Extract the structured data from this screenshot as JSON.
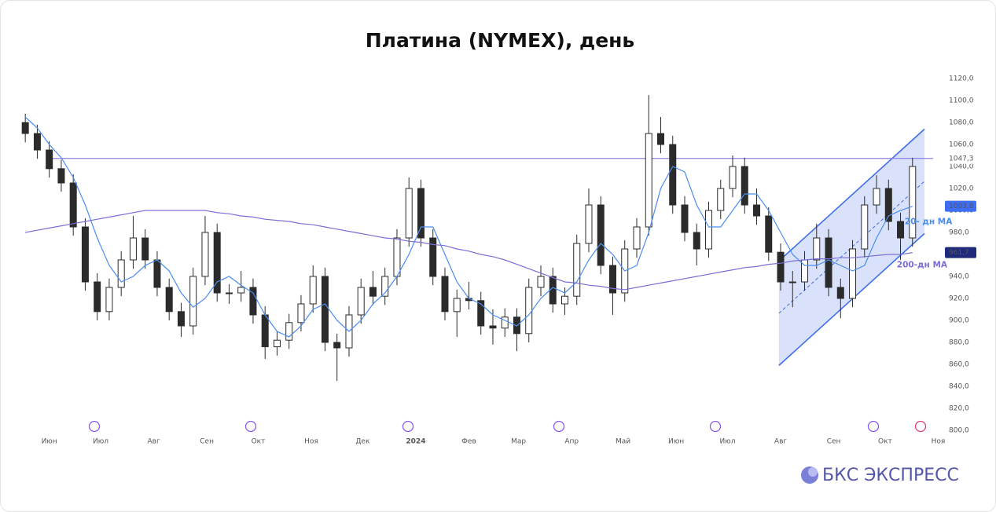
{
  "chart_data": {
    "type": "candlestick",
    "title": "Платина (NYMEX), день",
    "color": "#2b2b2b",
    "x": [
      -14,
      -7,
      0,
      7,
      14,
      21,
      28,
      35,
      42,
      49,
      56,
      63,
      70,
      77,
      84,
      91,
      98,
      105,
      112,
      119,
      126,
      133,
      140,
      147,
      154,
      161,
      168,
      175,
      182,
      189,
      196,
      203,
      210,
      217,
      224,
      231,
      238,
      245,
      252,
      259,
      266,
      273,
      280,
      287,
      294,
      301,
      308,
      315,
      322,
      329,
      336,
      343,
      350,
      357,
      364,
      371,
      378,
      385,
      392,
      399,
      406,
      413,
      420,
      427,
      434,
      441,
      448,
      455,
      462,
      469,
      476,
      483,
      490,
      497,
      504
    ],
    "open": [
      1080,
      1070,
      1055,
      1038,
      1025,
      985,
      935,
      908,
      930,
      955,
      975,
      955,
      930,
      908,
      895,
      940,
      980,
      925,
      925,
      930,
      905,
      876,
      882,
      898,
      915,
      940,
      880,
      875,
      905,
      930,
      922,
      940,
      975,
      1020,
      975,
      940,
      908,
      920,
      918,
      895,
      893,
      903,
      888,
      930,
      940,
      915,
      922,
      970,
      1005,
      950,
      925,
      965,
      985,
      1070,
      1060,
      1005,
      980,
      965,
      1000,
      1020,
      1040,
      1005,
      995,
      962,
      935,
      935,
      955,
      975,
      930,
      920,
      965,
      1005,
      1020,
      990,
      975
    ],
    "high": [
      1088,
      1078,
      1063,
      1046,
      1033,
      993,
      943,
      938,
      963,
      995,
      983,
      963,
      938,
      916,
      948,
      995,
      988,
      933,
      945,
      938,
      913,
      890,
      906,
      923,
      950,
      948,
      888,
      913,
      938,
      945,
      948,
      983,
      1030,
      1028,
      983,
      948,
      928,
      935,
      926,
      910,
      911,
      911,
      938,
      950,
      948,
      930,
      978,
      1020,
      1013,
      958,
      973,
      993,
      1105,
      1085,
      1068,
      1013,
      988,
      1008,
      1028,
      1050,
      1048,
      1020,
      1003,
      970,
      945,
      963,
      988,
      983,
      938,
      973,
      1013,
      1032,
      1028,
      998,
      1048
    ],
    "low": [
      1062,
      1047,
      1030,
      1017,
      977,
      927,
      900,
      900,
      922,
      947,
      947,
      922,
      900,
      885,
      887,
      932,
      917,
      915,
      917,
      897,
      865,
      868,
      874,
      890,
      907,
      872,
      845,
      867,
      897,
      914,
      914,
      932,
      967,
      967,
      932,
      900,
      885,
      910,
      887,
      878,
      885,
      872,
      880,
      922,
      907,
      905,
      914,
      962,
      942,
      905,
      917,
      957,
      977,
      1052,
      997,
      972,
      950,
      957,
      992,
      1012,
      997,
      987,
      954,
      927,
      912,
      927,
      947,
      922,
      902,
      912,
      957,
      997,
      982,
      955,
      967
    ],
    "close": [
      1070,
      1055,
      1038,
      1025,
      985,
      935,
      908,
      930,
      955,
      975,
      955,
      930,
      908,
      895,
      940,
      980,
      925,
      925,
      930,
      905,
      876,
      882,
      898,
      915,
      940,
      880,
      875,
      905,
      930,
      922,
      940,
      975,
      1020,
      975,
      940,
      908,
      920,
      918,
      895,
      893,
      903,
      888,
      930,
      940,
      915,
      922,
      970,
      1005,
      950,
      925,
      965,
      985,
      1070,
      1060,
      1005,
      980,
      965,
      1000,
      1020,
      1040,
      1005,
      995,
      962,
      935,
      935,
      955,
      975,
      930,
      920,
      965,
      1005,
      1020,
      990,
      975,
      1040
    ],
    "series": [
      {
        "name": "20- дн MA",
        "color": "#4a8df0",
        "values": [
          1085,
          1075,
          1060,
          1048,
          1030,
          1005,
          975,
          950,
          935,
          940,
          950,
          955,
          945,
          925,
          912,
          920,
          935,
          940,
          932,
          925,
          905,
          890,
          885,
          895,
          910,
          915,
          900,
          890,
          900,
          915,
          925,
          940,
          960,
          985,
          985,
          960,
          935,
          920,
          915,
          905,
          900,
          895,
          905,
          920,
          930,
          925,
          935,
          955,
          970,
          960,
          945,
          950,
          980,
          1020,
          1040,
          1035,
          1005,
          985,
          985,
          1000,
          1015,
          1015,
          1000,
          980,
          960,
          950,
          950,
          955,
          950,
          945,
          950,
          975,
          995,
          1000,
          1003.8
        ],
        "end_label": {
          "value": 1003.8,
          "label": "1003,8"
        }
      },
      {
        "name": "200-дн MA",
        "color": "#7b6fd6",
        "values": [
          980,
          982,
          984,
          986,
          988,
          990,
          992,
          994,
          996,
          998,
          1000,
          1000,
          1000,
          1000,
          1000,
          1000,
          998,
          997,
          995,
          994,
          992,
          991,
          990,
          988,
          987,
          985,
          983,
          981,
          979,
          977,
          975,
          974,
          972,
          971,
          969,
          968,
          965,
          963,
          960,
          958,
          955,
          951,
          947,
          943,
          939,
          935,
          934,
          932,
          931,
          929,
          928,
          930,
          932,
          934,
          936,
          938,
          940,
          942,
          944,
          946,
          948,
          949,
          951,
          952,
          954,
          955,
          956,
          956,
          957,
          957,
          958,
          959,
          960,
          960,
          961.7
        ],
        "end_label": {
          "value": 961.7,
          "label": "961,7"
        }
      }
    ],
    "level": {
      "value": 1047.3,
      "label": "1047,3",
      "color": "#8e80e6",
      "x": [
        1,
        516
      ]
    },
    "channel": {
      "x": [
        426,
        511
      ],
      "upper": [
        954,
        1074
      ],
      "lower": [
        859,
        979
      ],
      "color": "#3f6ee8"
    },
    "xlim": [
      -15,
      522
    ],
    "xticks": [
      {
        "value": 0,
        "label": "Июн"
      },
      {
        "value": 30,
        "label": "Июл"
      },
      {
        "value": 61,
        "label": "Авг"
      },
      {
        "value": 92,
        "label": "Сен"
      },
      {
        "value": 122,
        "label": "Окт"
      },
      {
        "value": 153,
        "label": "Ноя"
      },
      {
        "value": 183,
        "label": "Дек"
      },
      {
        "value": 214,
        "label": "2024"
      },
      {
        "value": 245,
        "label": "Фев"
      },
      {
        "value": 274,
        "label": "Мар"
      },
      {
        "value": 305,
        "label": "Апр"
      },
      {
        "value": 335,
        "label": "Май"
      },
      {
        "value": 366,
        "label": "Июн"
      },
      {
        "value": 396,
        "label": "Июл"
      },
      {
        "value": 427,
        "label": "Авг"
      },
      {
        "value": 458,
        "label": "Сен"
      },
      {
        "value": 488,
        "label": "Окт"
      },
      {
        "value": 519,
        "label": "Ноя"
      }
    ],
    "ylim": [
      800,
      1120
    ],
    "yticks": [
      {
        "value": 800,
        "label": "800,0"
      },
      {
        "value": 820,
        "label": "820,0"
      },
      {
        "value": 840,
        "label": "840,0"
      },
      {
        "value": 860,
        "label": "860,0"
      },
      {
        "value": 880,
        "label": "880,0"
      },
      {
        "value": 900,
        "label": "900,0"
      },
      {
        "value": 920,
        "label": "920,0"
      },
      {
        "value": 940,
        "label": "940,0"
      },
      {
        "value": 960,
        "label": "960,0"
      },
      {
        "value": 980,
        "label": "980,0"
      },
      {
        "value": 1000,
        "label": "1000,0"
      },
      {
        "value": 1020,
        "label": "1020,0"
      },
      {
        "value": 1040,
        "label": "1040,0"
      },
      {
        "value": 1060,
        "label": "1060,0"
      },
      {
        "value": 1080,
        "label": "1080,0"
      },
      {
        "value": 1100,
        "label": "1100,0"
      },
      {
        "value": 1120,
        "label": "1120,0"
      }
    ],
    "grid": false,
    "brand": "БКС ЭКСПРЕСС"
  }
}
